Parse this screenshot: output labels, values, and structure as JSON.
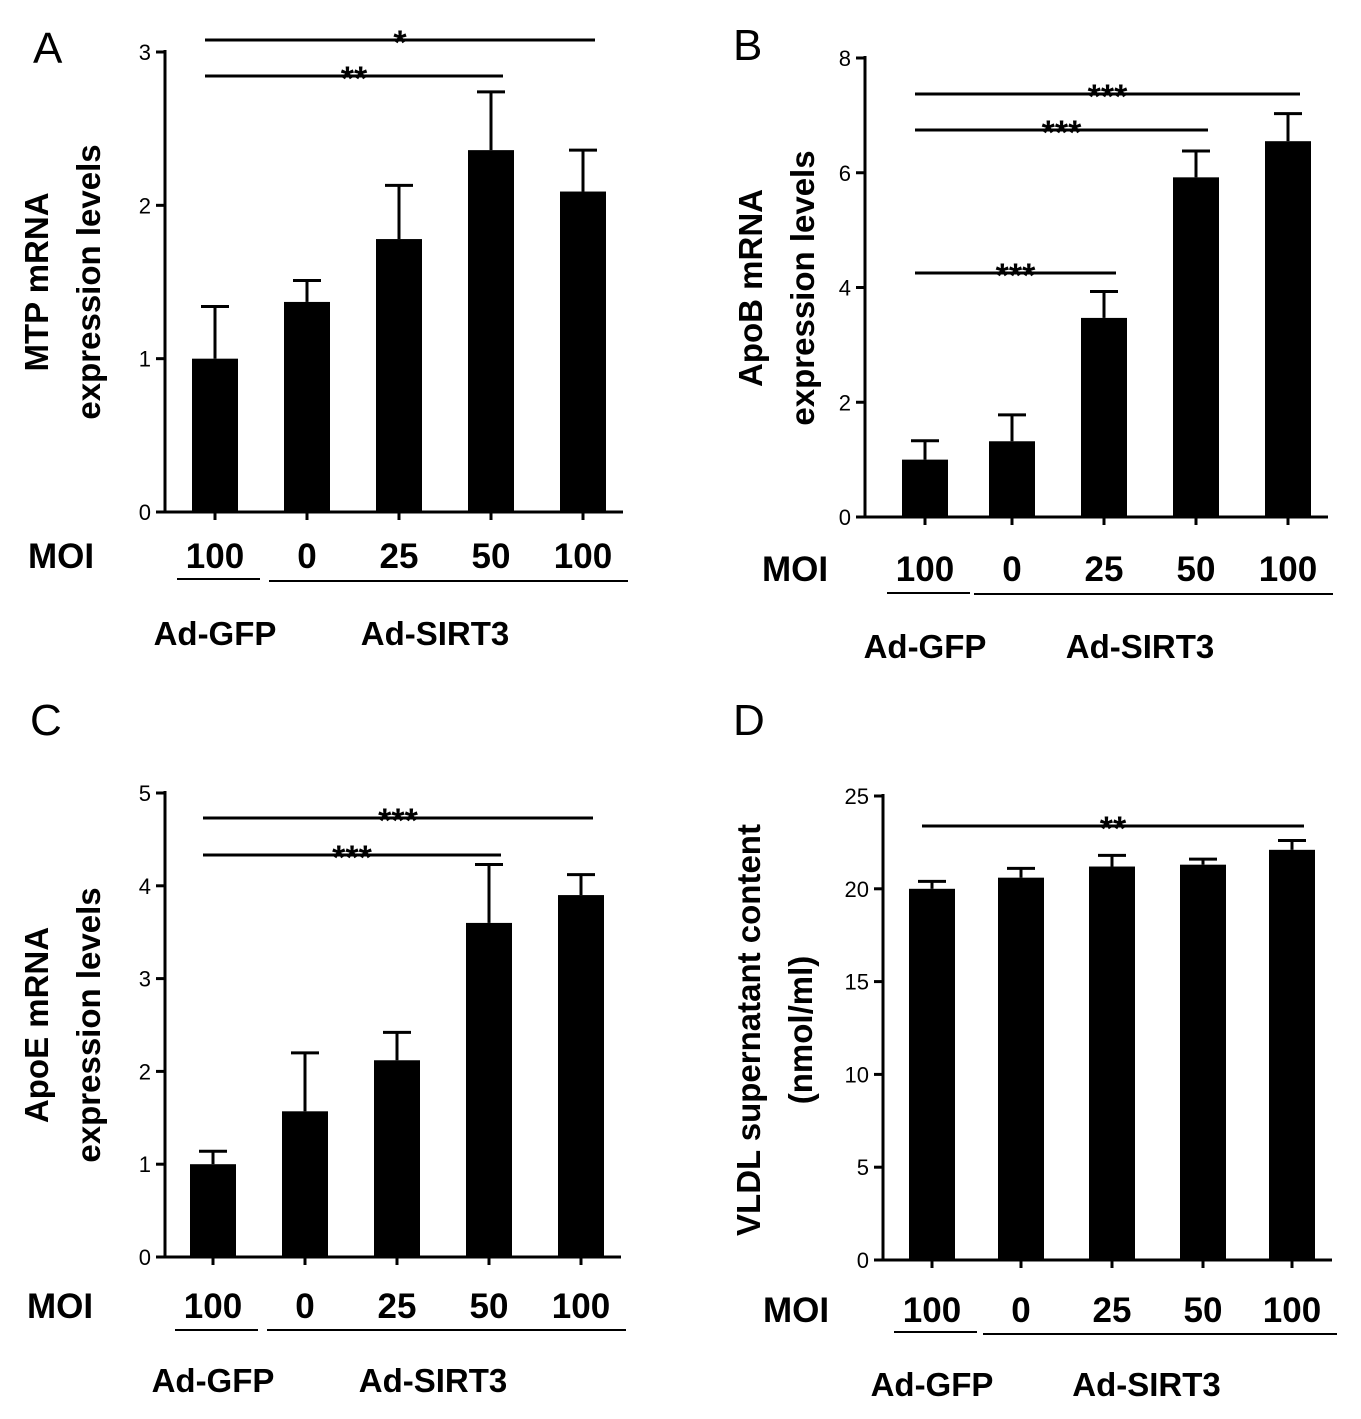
{
  "figure": {
    "moi_label": "MOI",
    "groups": [
      {
        "label": "Ad-GFP",
        "span": [
          0,
          0
        ]
      },
      {
        "label": "Ad-SIRT3",
        "span": [
          1,
          4
        ]
      }
    ]
  },
  "chart_data": [
    {
      "panel": "A",
      "type": "bar",
      "title": "",
      "ylabel_lines": [
        "MTP mRNA",
        "expression levels"
      ],
      "xlabel": "MOI",
      "categories": [
        "100",
        "0",
        "25",
        "50",
        "100"
      ],
      "values": [
        1.0,
        1.37,
        1.78,
        2.36,
        2.09
      ],
      "errors": [
        0.34,
        0.14,
        0.35,
        0.38,
        0.27
      ],
      "ylim": [
        0,
        3
      ],
      "yticks": [
        0,
        1,
        2,
        3
      ],
      "significance": [
        {
          "from": 0,
          "to": 4,
          "label": "*"
        },
        {
          "from": 0,
          "to": 3,
          "label": "**"
        }
      ]
    },
    {
      "panel": "B",
      "type": "bar",
      "title": "",
      "ylabel_lines": [
        "ApoB mRNA",
        "expression levels"
      ],
      "xlabel": "MOI",
      "categories": [
        "100",
        "0",
        "25",
        "50",
        "100"
      ],
      "values": [
        1.0,
        1.32,
        3.47,
        5.92,
        6.55
      ],
      "errors": [
        0.33,
        0.46,
        0.46,
        0.46,
        0.48
      ],
      "ylim": [
        0,
        8
      ],
      "yticks": [
        0,
        2,
        4,
        6,
        8
      ],
      "significance": [
        {
          "from": 0,
          "to": 4,
          "label": "***"
        },
        {
          "from": 0,
          "to": 3,
          "label": "***"
        },
        {
          "from": 0,
          "to": 2,
          "label": "***"
        }
      ]
    },
    {
      "panel": "C",
      "type": "bar",
      "title": "",
      "ylabel_lines": [
        "ApoE mRNA",
        "expression levels"
      ],
      "xlabel": "MOI",
      "categories": [
        "100",
        "0",
        "25",
        "50",
        "100"
      ],
      "values": [
        1.0,
        1.57,
        2.12,
        3.6,
        3.9
      ],
      "errors": [
        0.14,
        0.63,
        0.3,
        0.63,
        0.22
      ],
      "ylim": [
        0,
        5
      ],
      "yticks": [
        0,
        1,
        2,
        3,
        4,
        5
      ],
      "significance": [
        {
          "from": 0,
          "to": 4,
          "label": "***"
        },
        {
          "from": 0,
          "to": 3,
          "label": "***"
        }
      ]
    },
    {
      "panel": "D",
      "type": "bar",
      "title": "",
      "ylabel_lines": [
        "VLDL supernatant content",
        "(nmol/ml)"
      ],
      "xlabel": "MOI",
      "categories": [
        "100",
        "0",
        "25",
        "50",
        "100"
      ],
      "values": [
        20.0,
        20.6,
        21.2,
        21.3,
        22.1
      ],
      "errors": [
        0.4,
        0.5,
        0.6,
        0.3,
        0.5
      ],
      "ylim": [
        0,
        25
      ],
      "yticks": [
        0,
        5,
        10,
        15,
        20,
        25
      ],
      "significance": [
        {
          "from": 0,
          "to": 4,
          "label": "**"
        }
      ]
    }
  ]
}
